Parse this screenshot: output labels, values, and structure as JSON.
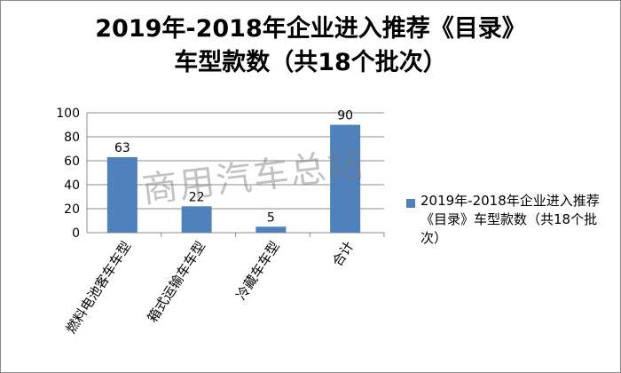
{
  "chart_data": {
    "type": "bar",
    "title_line1": "2019年-2018年企业进入推荐《目录》",
    "title_line2": "车型款数（共18个批次）",
    "categories": [
      "燃料电池客车车型",
      "箱式运输车车型",
      "冷藏车车型",
      "合计"
    ],
    "series": [
      {
        "name": "2019年-2018年企业进入推荐《目录》车型款数（共18个批次）",
        "values": [
          63,
          22,
          5,
          90
        ],
        "color": "#4f81bd"
      }
    ],
    "ylim": [
      0,
      100
    ],
    "yticks": [
      0,
      20,
      40,
      60,
      80,
      100
    ],
    "grid": true,
    "legend_position": "right"
  },
  "watermark": "商用汽车总站"
}
